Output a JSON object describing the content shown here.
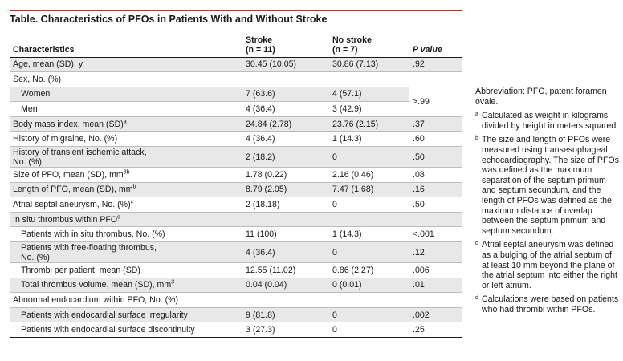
{
  "title": "Table. Characteristics of PFOs in Patients With and Without Stroke",
  "columns": {
    "characteristics": "Characteristics",
    "stroke": [
      "Stroke",
      "(n = 11)"
    ],
    "no_stroke": [
      "No stroke",
      "(n = 7)"
    ],
    "p_value": "P value"
  },
  "rows": [
    {
      "label": "Age, mean (SD), y",
      "sup": "",
      "stroke": "30.45 (10.05)",
      "no_stroke": "30.86 (7.13)",
      "p": ".92"
    },
    {
      "label": "Sex, No. (%)",
      "sup": "",
      "stroke": "",
      "no_stroke": "",
      "p": ""
    },
    {
      "label": "Women",
      "sup": "",
      "stroke": "7 (63.6)",
      "no_stroke": "4 (57.1)",
      "p": ">.99"
    },
    {
      "label": "Men",
      "sup": "",
      "stroke": "4 (36.4)",
      "no_stroke": "3 (42.9)",
      "p": ""
    },
    {
      "label": "Body mass index, mean (SD)",
      "sup": "a",
      "stroke": "24.84 (2.78)",
      "no_stroke": "23.76 (2.15)",
      "p": ".37"
    },
    {
      "label": "History of migraine, No. (%)",
      "sup": "",
      "stroke": "4 (36.4)",
      "no_stroke": "1 (14.3)",
      "p": ".60"
    },
    {
      "label": "History of transient ischemic attack,",
      "label2": "No. (%)",
      "sup": "",
      "stroke": "2 (18.2)",
      "no_stroke": "0",
      "p": ".50"
    },
    {
      "label": "Size of PFO, mean (SD), mm",
      "sup": "3b",
      "stroke": "1.78 (0.22)",
      "no_stroke": "2.16 (0.46)",
      "p": ".08"
    },
    {
      "label": "Length of PFO, mean (SD), mm",
      "sup": "b",
      "stroke": "8.79 (2.05)",
      "no_stroke": "7.47 (1.68)",
      "p": ".16"
    },
    {
      "label": "Atrial septal aneurysm, No. (%)",
      "sup": "c",
      "stroke": "2 (18.18)",
      "no_stroke": "0",
      "p": ".50"
    },
    {
      "label": "In situ thrombus within PFO",
      "sup": "d",
      "stroke": "",
      "no_stroke": "",
      "p": ""
    },
    {
      "label": "Patients with in situ thrombus, No. (%)",
      "sup": "",
      "stroke": "11 (100)",
      "no_stroke": "1 (14.3)",
      "p": "<.001"
    },
    {
      "label": "Patients with free-floating thrombus,",
      "label2": "No. (%)",
      "sup": "",
      "stroke": "4 (36.4)",
      "no_stroke": "0",
      "p": ".12"
    },
    {
      "label": "Thrombi per patient, mean (SD)",
      "sup": "",
      "stroke": "12.55 (11.02)",
      "no_stroke": "0.86 (2.27)",
      "p": ".006"
    },
    {
      "label": "Total thrombus volume, mean (SD), mm",
      "sup": "3",
      "stroke": "0.04 (0.04)",
      "no_stroke": "0 (0.01)",
      "p": ".01"
    },
    {
      "label": "Abnormal endocardium within PFO, No. (%)",
      "sup": "",
      "stroke": "",
      "no_stroke": "",
      "p": ""
    },
    {
      "label": "Patients with endocardial surface irregularity",
      "sup": "",
      "stroke": "9 (81.8)",
      "no_stroke": "0",
      "p": ".002"
    },
    {
      "label": "Patients with endocardial surface discontinuity",
      "sup": "",
      "stroke": "3 (27.3)",
      "no_stroke": "0",
      "p": ".25"
    }
  ],
  "notes": {
    "abbreviation": "Abbreviation: PFO, patent foramen ovale.",
    "footnotes": [
      {
        "mark": "a",
        "text": "Calculated as weight in kilograms divided by height in meters squared."
      },
      {
        "mark": "b",
        "text": "The size and length of PFOs were measured using transesophageal echocardiography. The size of PFOs was defined as the maximum separation of the septum primum and septum secundum, and the length of PFOs was defined as the maximum distance of overlap between the septum primum and septum secundum."
      },
      {
        "mark": "c",
        "text": "Atrial septal aneurysm was defined as a bulging of the atrial septum of at least 10 mm beyond the plane of the atrial septum into either the right or left atrium."
      },
      {
        "mark": "d",
        "text": "Calculations were based on patients who had thrombi within PFOs."
      }
    ]
  },
  "colors": {
    "title_rule": "#d9261c",
    "row_shade": "#e8e8e8",
    "rule": "#bdbdbd"
  }
}
